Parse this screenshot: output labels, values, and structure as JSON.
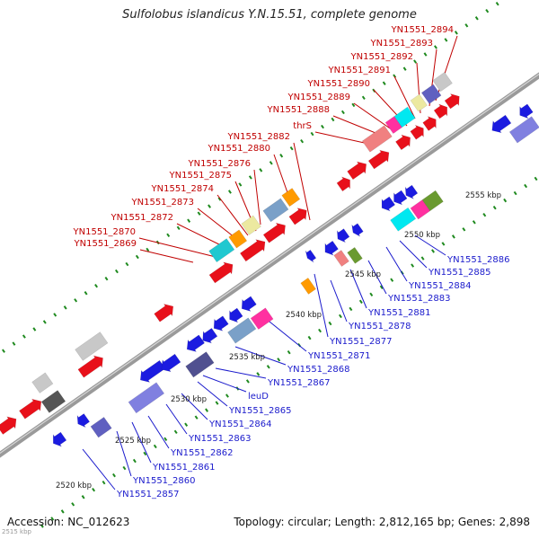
{
  "title": "Sulfolobus islandicus Y.N.15.51, complete genome",
  "footer": {
    "accession": "Accession: NC_012623",
    "stats": "Topology: circular; Length: 2,812,165 bp; Genes: 2,898"
  },
  "corner_kbp": "2515 kbp",
  "kbp_ticks": [
    "2520 kbp",
    "2525 kbp",
    "2530 kbp",
    "2535 kbp",
    "2540 kbp",
    "2545 kbp",
    "2550 kbp",
    "2555 kbp"
  ],
  "top_labels": [
    "YN1551_2869",
    "YN1551_2870",
    "YN1551_2872",
    "YN1551_2873",
    "YN1551_2874",
    "YN1551_2875",
    "YN1551_2876",
    "YN1551_2880",
    "YN1551_2882",
    "thrS",
    "YN1551_2888",
    "YN1551_2889",
    "YN1551_2890",
    "YN1551_2891",
    "YN1551_2892",
    "YN1551_2893",
    "YN1551_2894"
  ],
  "bottom_labels": [
    "YN1551_2857",
    "YN1551_2860",
    "YN1551_2861",
    "YN1551_2862",
    "YN1551_2863",
    "YN1551_2864",
    "YN1551_2865",
    "leuD",
    "YN1551_2867",
    "YN1551_2868",
    "YN1551_2871",
    "YN1551_2877",
    "YN1551_2878",
    "YN1551_2881",
    "YN1551_2883",
    "YN1551_2884",
    "YN1551_2885",
    "YN1551_2886"
  ],
  "colors": {
    "backbone": "#9a9a9a",
    "forward_strand": "#e8101a",
    "reverse_strand": "#1b1be0",
    "top_label": "#c00000",
    "bottom_label": "#1a1acc",
    "gc_dots": "#1f8a1f"
  }
}
